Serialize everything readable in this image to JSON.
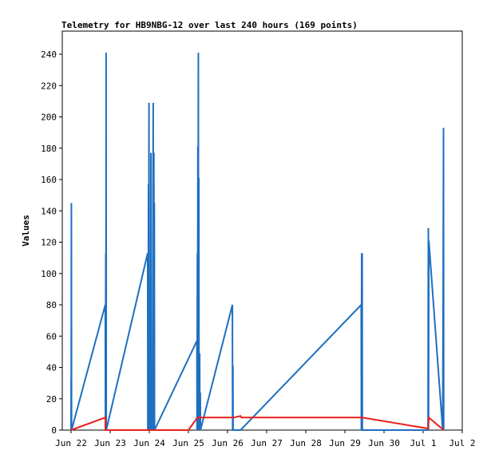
{
  "chart_data": {
    "type": "line",
    "title": "Telemetry for HB9NBG-12 over last 240 hours (169 points)",
    "xlabel": "",
    "ylabel": "Values",
    "x_tick_labels": [
      "Jun 22",
      "Jun 23",
      "Jun 24",
      "Jun 25",
      "Jun 26",
      "Jun 27",
      "Jun 28",
      "Jun 29",
      "Jun 30",
      "Jul 1",
      "Jul 2"
    ],
    "xlim": [
      0,
      240
    ],
    "ylim": [
      0,
      255
    ],
    "y_ticks": [
      0,
      20,
      40,
      60,
      80,
      100,
      120,
      140,
      160,
      180,
      200,
      220,
      240
    ],
    "grid": false,
    "series": [
      {
        "color": "#1f6fc0",
        "points": [
          [
            0.0,
            0
          ],
          [
            0.05,
            33
          ],
          [
            0.1,
            0
          ],
          [
            0.2,
            145
          ],
          [
            0.3,
            0
          ],
          [
            21.0,
            80
          ],
          [
            21.1,
            0
          ],
          [
            21.3,
            113
          ],
          [
            21.4,
            0
          ],
          [
            21.5,
            241
          ],
          [
            21.6,
            0
          ],
          [
            47.0,
            113
          ],
          [
            47.1,
            0
          ],
          [
            47.4,
            52
          ],
          [
            47.5,
            157
          ],
          [
            47.6,
            0
          ],
          [
            47.8,
            209
          ],
          [
            47.9,
            0
          ],
          [
            48.1,
            80
          ],
          [
            48.2,
            0
          ],
          [
            48.6,
            88
          ],
          [
            48.7,
            0
          ],
          [
            49.0,
            177
          ],
          [
            49.1,
            0
          ],
          [
            49.5,
            16
          ],
          [
            49.6,
            8
          ],
          [
            49.9,
            12
          ],
          [
            50.0,
            0
          ],
          [
            50.4,
            209
          ],
          [
            50.5,
            0
          ],
          [
            50.6,
            105
          ],
          [
            50.7,
            0
          ],
          [
            50.8,
            177
          ],
          [
            50.9,
            0
          ],
          [
            51.1,
            145
          ],
          [
            51.2,
            0
          ],
          [
            77.2,
            57
          ],
          [
            77.3,
            0
          ],
          [
            77.5,
            113
          ],
          [
            77.6,
            0
          ],
          [
            77.8,
            181
          ],
          [
            77.9,
            0
          ],
          [
            78.1,
            241
          ],
          [
            78.2,
            0
          ],
          [
            78.4,
            161
          ],
          [
            78.5,
            0
          ],
          [
            78.9,
            49
          ],
          [
            79.0,
            0
          ],
          [
            79.3,
            24
          ],
          [
            79.4,
            0
          ],
          [
            99.0,
            80
          ],
          [
            99.1,
            0
          ],
          [
            99.3,
            41
          ],
          [
            99.4,
            0
          ],
          [
            104.0,
            0
          ],
          [
            178.0,
            80
          ],
          [
            178.1,
            0
          ],
          [
            178.3,
            113
          ],
          [
            178.4,
            0
          ],
          [
            178.6,
            113
          ],
          [
            178.7,
            0
          ],
          [
            219.0,
            0
          ],
          [
            219.2,
            129
          ],
          [
            219.3,
            0
          ],
          [
            219.5,
            121
          ],
          [
            228.0,
            0
          ],
          [
            228.3,
            97
          ],
          [
            228.5,
            193
          ],
          [
            228.6,
            0
          ]
        ]
      },
      {
        "color": "#e8201c",
        "points": [
          [
            0.0,
            0
          ],
          [
            21.0,
            8
          ],
          [
            21.1,
            0
          ],
          [
            72.0,
            0
          ],
          [
            77.5,
            8
          ],
          [
            78.5,
            8
          ],
          [
            100.0,
            8
          ],
          [
            104.0,
            9
          ],
          [
            104.5,
            8
          ],
          [
            178.6,
            8
          ],
          [
            219.0,
            1
          ],
          [
            219.5,
            8
          ],
          [
            228.6,
            0
          ]
        ]
      }
    ]
  }
}
